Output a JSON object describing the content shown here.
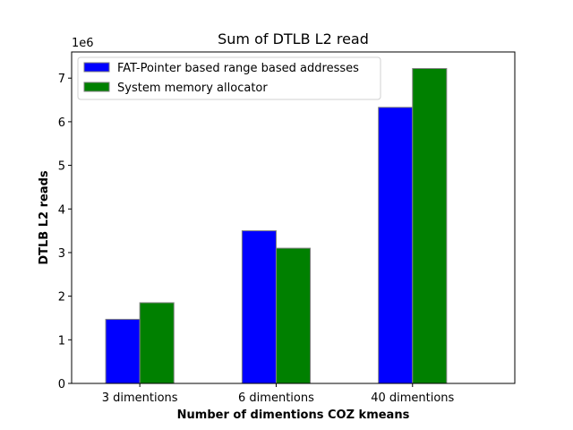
{
  "chart_data": {
    "type": "bar",
    "title": "Sum of DTLB L2 read",
    "xlabel": "Number of dimentions COZ kmeans",
    "ylabel": "DTLB L2 reads",
    "y_multiplier_label": "1e6",
    "categories": [
      "3 dimentions",
      "6 dimentions",
      "40 dimentions"
    ],
    "series": [
      {
        "name": "FAT-Pointer based range based addresses",
        "color": "#0000ff",
        "values": [
          1470000,
          3500000,
          6330000
        ]
      },
      {
        "name": "System memory allocator",
        "color": "#008000",
        "values": [
          1850000,
          3100000,
          7220000
        ]
      }
    ],
    "ylim": [
      0,
      7600000
    ],
    "yticks": [
      0,
      1000000,
      2000000,
      3000000,
      4000000,
      5000000,
      6000000,
      7000000
    ],
    "ytick_labels": [
      "0",
      "1",
      "2",
      "3",
      "4",
      "5",
      "6",
      "7"
    ],
    "grid": false,
    "legend_position": "top-left",
    "bar_edge_color": "#808080"
  }
}
